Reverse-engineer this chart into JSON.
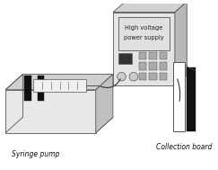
{
  "bg_color": "#ffffff",
  "syringe_pump_label": "Syringe pump",
  "collection_board_label": "Collection board",
  "hv_label_line1": "High voltage",
  "hv_label_line2": "power supply",
  "fig_width": 2.43,
  "fig_height": 1.89,
  "dpi": 100,
  "label_fontsize": 5.5,
  "lc": "#555555",
  "bg_fill": "#eeeeee",
  "dark": "#111111",
  "mid": "#cccccc",
  "light": "#e8e8e8"
}
